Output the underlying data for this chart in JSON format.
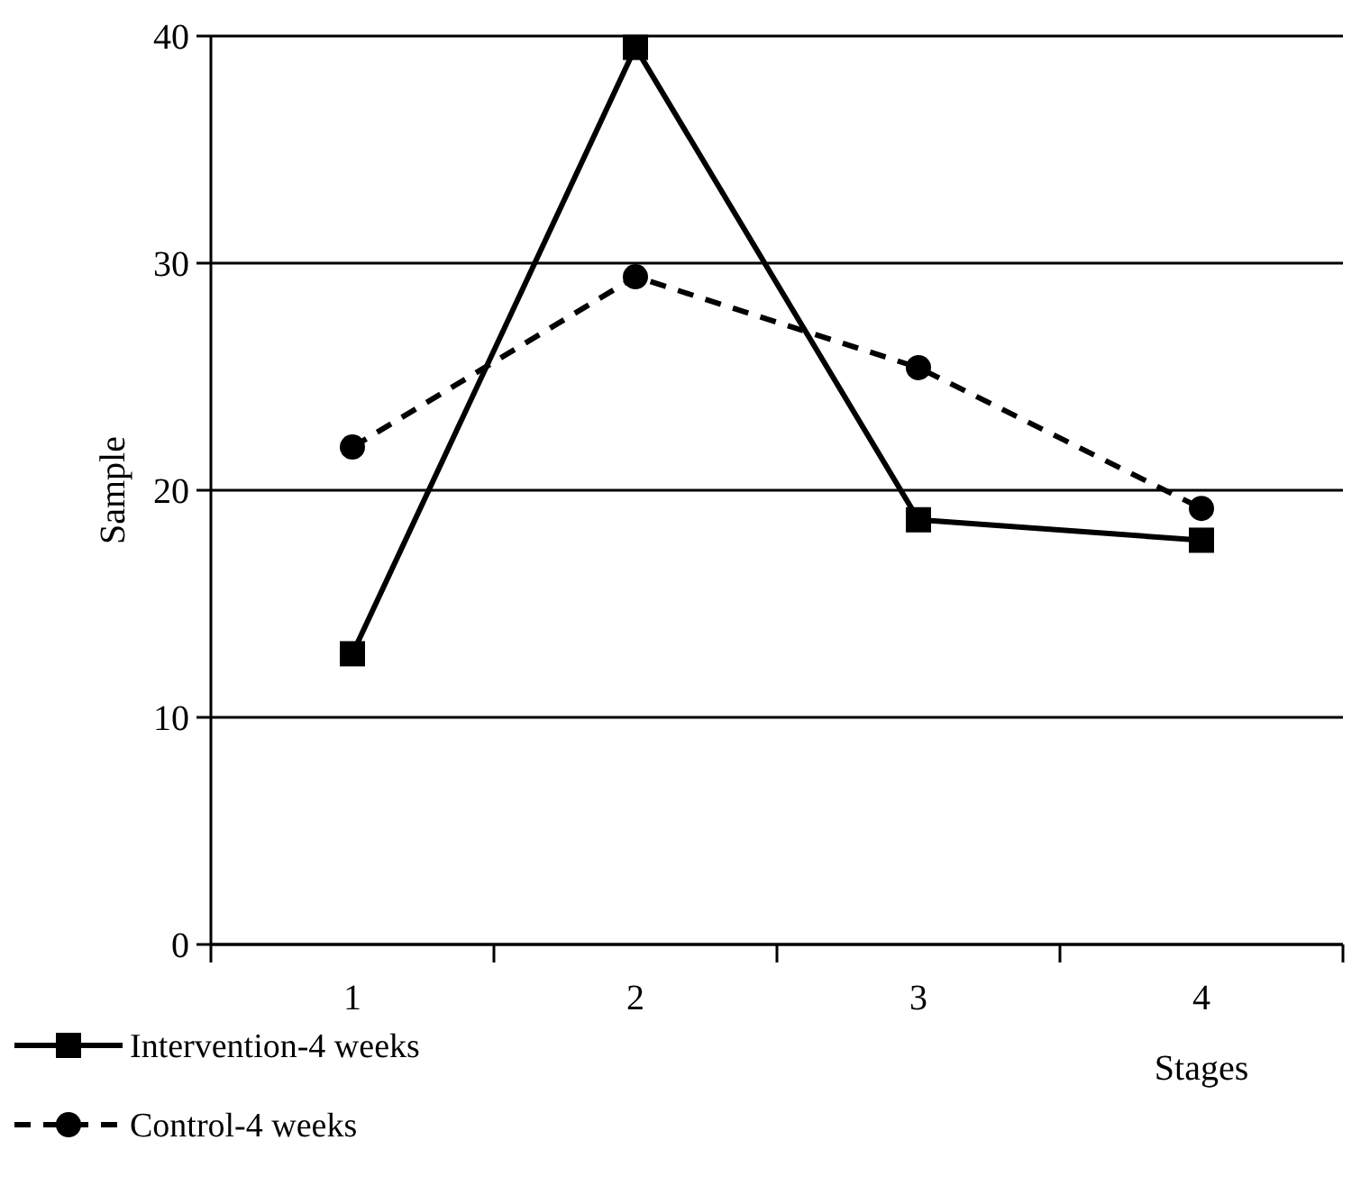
{
  "chart_data": {
    "type": "line",
    "xlabel": "Stages",
    "ylabel": "Sample",
    "categories": [
      "1",
      "2",
      "3",
      "4"
    ],
    "series": [
      {
        "name": "Intervention-4 weeks",
        "color": "#000000",
        "values": [
          12.8,
          39.5,
          18.7,
          17.8
        ],
        "marker": "square",
        "line_style": "solid"
      },
      {
        "name": "Control-4 weeks",
        "color": "#000000",
        "values": [
          21.9,
          29.4,
          25.4,
          19.2
        ],
        "marker": "circle",
        "line_style": "dashed"
      }
    ],
    "ylim": [
      0,
      40
    ],
    "yticks": [
      0,
      10,
      20,
      30,
      40
    ],
    "grid": "y",
    "legend": "bottom left"
  }
}
